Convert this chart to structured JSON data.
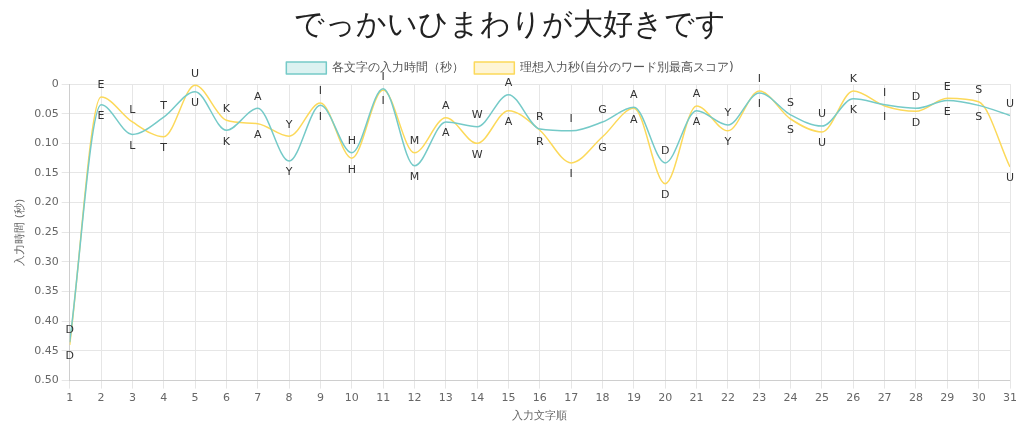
{
  "chart_data": {
    "type": "line",
    "title": "でっかいひまわりが大好きです",
    "xlabel": "入力文字順",
    "ylabel": "入力時間 (秒)",
    "x": [
      1,
      2,
      3,
      4,
      5,
      6,
      7,
      8,
      9,
      10,
      11,
      12,
      13,
      14,
      15,
      16,
      17,
      18,
      19,
      20,
      21,
      22,
      23,
      24,
      25,
      26,
      27,
      28,
      29,
      30,
      31
    ],
    "xlim": [
      1,
      31
    ],
    "xticks": [
      1,
      2,
      3,
      4,
      5,
      6,
      7,
      8,
      9,
      10,
      11,
      12,
      13,
      14,
      15,
      16,
      17,
      18,
      19,
      20,
      21,
      22,
      23,
      24,
      25,
      26,
      27,
      28,
      29,
      30,
      31
    ],
    "series": [
      {
        "name": "各文字の入力時間（秒）",
        "color": "#75cac8",
        "values": [
          0.435,
          0.035,
          0.085,
          0.056,
          0.013,
          0.078,
          0.041,
          0.13,
          0.036,
          0.116,
          0.008,
          0.138,
          0.064,
          0.072,
          0.018,
          0.076,
          0.079,
          0.064,
          0.039,
          0.133,
          0.045,
          0.069,
          0.015,
          0.052,
          0.071,
          0.025,
          0.035,
          0.041,
          0.028,
          0.036,
          0.053
        ],
        "value_labels": [
          "D",
          "E",
          "L",
          "T",
          "U",
          "K",
          "A",
          "Y",
          "I",
          "H",
          "I",
          "M",
          "A",
          "W",
          "A",
          "R",
          "I",
          "G",
          "A",
          "D",
          "A",
          "Y",
          "I",
          "S",
          "U",
          "K",
          "I",
          "D",
          "E",
          "S",
          "U"
        ]
      },
      {
        "name": "理想入力秒(自分のワード別最高スコア)",
        "color": "#fcd95a",
        "values": [
          0.44,
          0.022,
          0.064,
          0.089,
          0.002,
          0.061,
          0.067,
          0.088,
          0.032,
          0.125,
          0.01,
          0.116,
          0.057,
          0.1,
          0.045,
          0.078,
          0.133,
          0.089,
          0.041,
          0.168,
          0.037,
          0.079,
          0.012,
          0.059,
          0.081,
          0.012,
          0.037,
          0.046,
          0.024,
          0.03,
          0.14
        ],
        "value_labels": [
          "D",
          "E",
          "L",
          "T",
          "U",
          "K",
          "A",
          "Y",
          "I",
          "H",
          "I",
          "M",
          "A",
          "W",
          "A",
          "R",
          "I",
          "G",
          "A",
          "D",
          "A",
          "Y",
          "I",
          "S",
          "U",
          "K",
          "I",
          "D",
          "E",
          "S",
          "U"
        ]
      }
    ],
    "ylim": [
      0.5,
      0
    ],
    "yticks": [
      {
        "value": 0,
        "label": "0"
      },
      {
        "value": 0.05,
        "label": "0.05"
      },
      {
        "value": 0.1,
        "label": "0.10"
      },
      {
        "value": 0.15,
        "label": "0.15"
      },
      {
        "value": 0.2,
        "label": "0.20"
      },
      {
        "value": 0.25,
        "label": "0.25"
      },
      {
        "value": 0.3,
        "label": "0.30"
      },
      {
        "value": 0.35,
        "label": "0.35"
      },
      {
        "value": 0.4,
        "label": "0.40"
      },
      {
        "value": 0.45,
        "label": "0.45"
      },
      {
        "value": 0.5,
        "label": "0.50"
      }
    ],
    "grid": true,
    "legend": "top",
    "marker": "none",
    "line_style": "solid"
  }
}
